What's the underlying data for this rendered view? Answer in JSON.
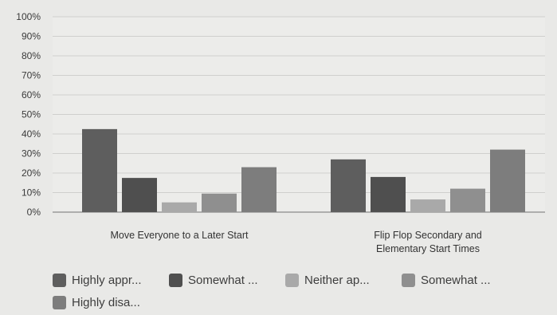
{
  "chart_data": {
    "type": "bar",
    "title": "",
    "xlabel": "",
    "ylabel": "",
    "ylim": [
      0,
      100
    ],
    "y_ticks": [
      "0%",
      "10%",
      "20%",
      "30%",
      "40%",
      "50%",
      "60%",
      "70%",
      "80%",
      "90%",
      "100%"
    ],
    "grid": true,
    "legend_position": "bottom",
    "categories": [
      [
        "Move Everyone to a Later Start"
      ],
      [
        "Flip Flop Secondary and",
        "Elementary Start Times"
      ]
    ],
    "series": [
      {
        "name": "Highly appr...",
        "color": "#5e5e5e",
        "values": [
          42.5,
          27
        ]
      },
      {
        "name": "Somewhat ...",
        "color": "#4f4f4f",
        "values": [
          17.5,
          18
        ]
      },
      {
        "name": "Neither ap...",
        "color": "#a9a9a9",
        "values": [
          5,
          6.5
        ]
      },
      {
        "name": "Somewhat ...",
        "color": "#8f8f8f",
        "values": [
          9.5,
          12
        ]
      },
      {
        "name": "Highly disa...",
        "color": "#7d7d7d",
        "values": [
          23,
          32
        ]
      }
    ]
  }
}
